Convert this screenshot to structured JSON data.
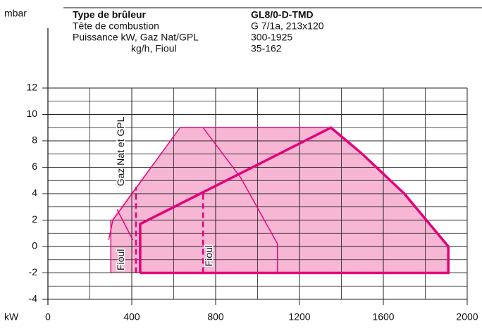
{
  "chart_data": {
    "type": "field",
    "ylabel": "mbar",
    "xlabel": "kW",
    "header": [
      [
        "Type de brûleur",
        "GL8/0-D-TMD"
      ],
      [
        "Tête de combustion",
        "G 7/1a, 213x120"
      ],
      [
        "Puissance kW, Gaz Nat/GPL",
        "300-1925"
      ],
      [
        "kg/h, Fioul",
        "35-162"
      ]
    ],
    "xlim": [
      0,
      2000
    ],
    "xticks": [
      0,
      400,
      800,
      1200,
      1600,
      2000
    ],
    "xminor": [
      200,
      600,
      1000,
      1400,
      1800
    ],
    "ylim": [
      -4,
      12
    ],
    "yticks": [
      -4,
      -2,
      0,
      2,
      4,
      6,
      8,
      10,
      12
    ],
    "yminor": [
      -3,
      -1,
      1,
      3,
      5,
      7,
      9,
      11
    ],
    "grid": true,
    "color": "#e4007c",
    "fill": "#f6b6d4",
    "area": {
      "x": [
        300,
        300,
        630,
        1350,
        1500,
        1700,
        1910,
        1910
      ],
      "values": [
        -2,
        2,
        9,
        9,
        7,
        4,
        0,
        -2
      ]
    },
    "series": [
      {
        "style": "thin",
        "x": [
          290,
          310,
          630,
          1350
        ],
        "values": [
          0.5,
          2,
          9,
          9
        ]
      },
      {
        "style": "thin",
        "x": [
          300,
          300
        ],
        "values": [
          2,
          -2
        ]
      },
      {
        "style": "thin",
        "x": [
          330,
          405
        ],
        "values": [
          2.8,
          0.5
        ]
      },
      {
        "style": "thin",
        "x": [
          740,
          920,
          1095,
          1095
        ],
        "values": [
          9,
          5.2,
          0.2,
          -2
        ]
      },
      {
        "style": "thick",
        "x": [
          440,
          440,
          1350,
          1500,
          1700,
          1910,
          1910,
          440
        ],
        "values": [
          -2,
          1.7,
          9,
          7,
          4,
          0,
          -2,
          -2
        ]
      },
      {
        "style": "dashed",
        "x": [
          420,
          420
        ],
        "values": [
          -2,
          4.5
        ]
      },
      {
        "style": "dashed",
        "x": [
          740,
          740
        ],
        "values": [
          -2,
          4.2
        ]
      }
    ],
    "annotations": [
      {
        "text": "Gaz Nat et GPL",
        "x": 350,
        "y": 7.2
      },
      {
        "text": "Fioul",
        "x": 350,
        "y": -1
      },
      {
        "text": "Fioul",
        "x": 770,
        "y": -0.7
      }
    ]
  }
}
